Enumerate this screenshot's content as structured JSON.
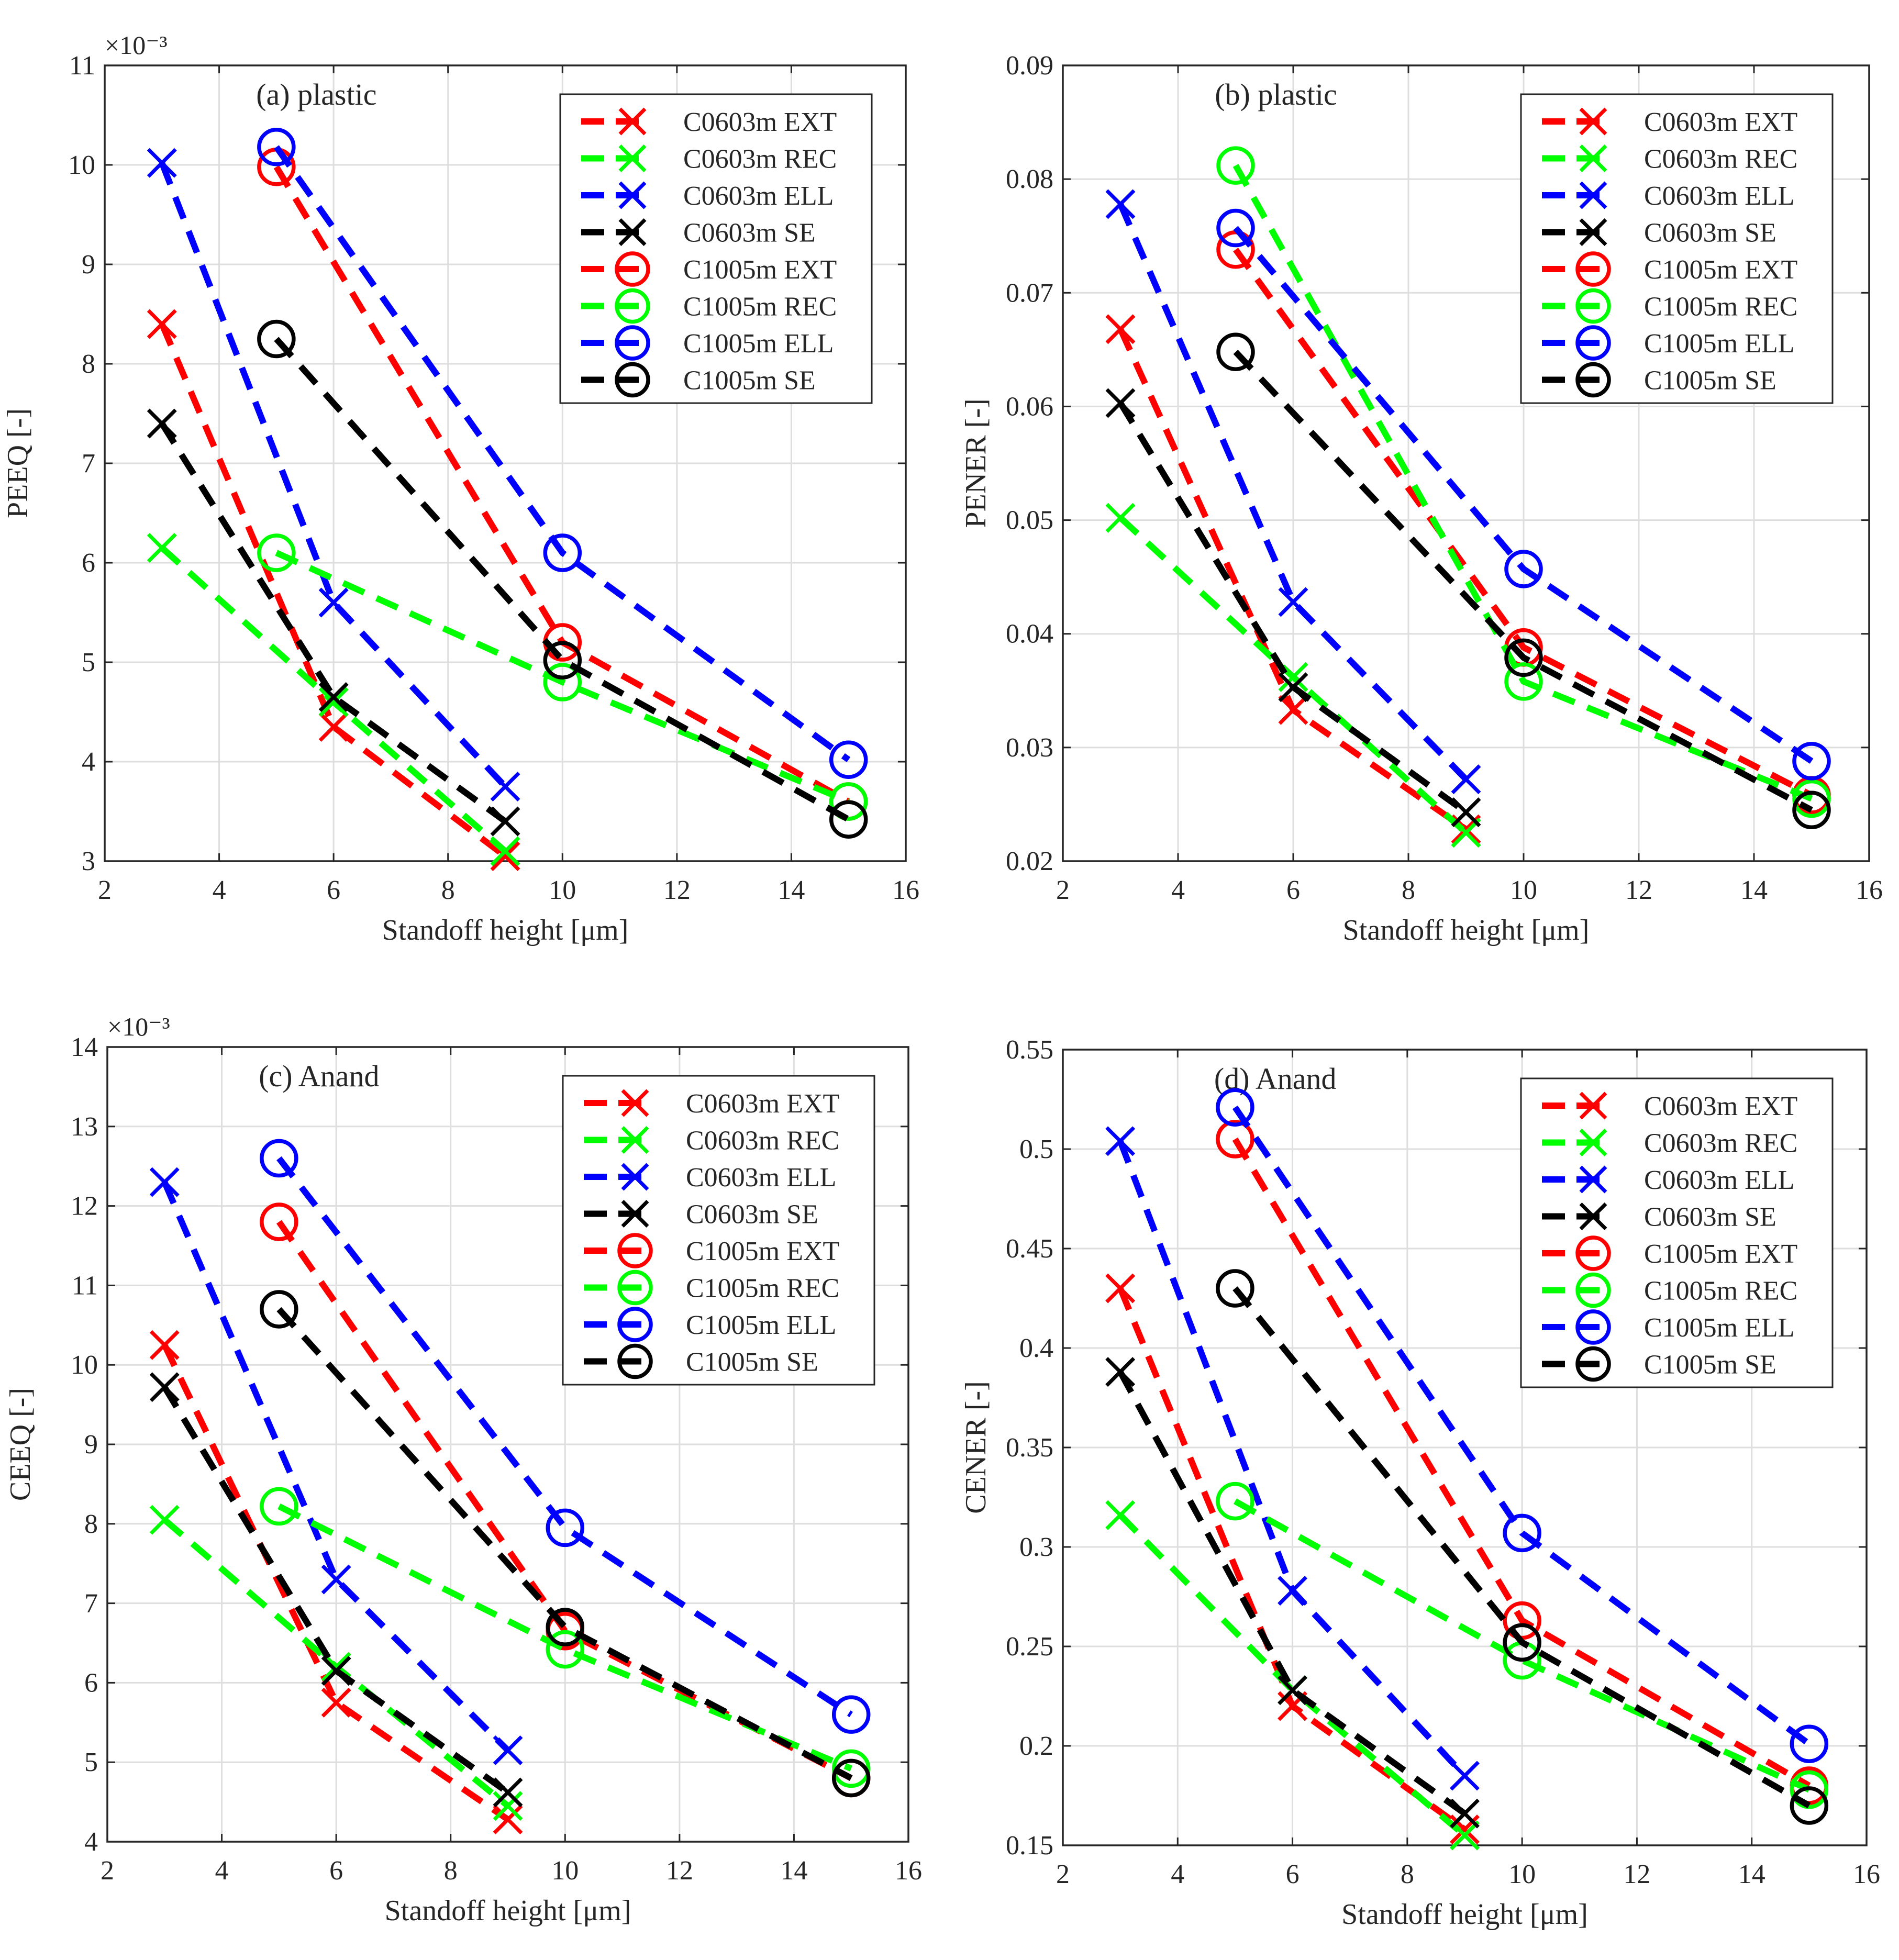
{
  "chart_data": [
    {
      "type": "line",
      "title": "(a) plastic",
      "xlabel": "Standoff height [μm]",
      "ylabel": "PEEQ [-]",
      "y_exponent": "×10⁻³",
      "xlim": [
        2,
        16
      ],
      "ylim": [
        3,
        11
      ],
      "xticks": [
        2,
        4,
        6,
        8,
        10,
        12,
        14,
        16
      ],
      "yticks": [
        3,
        4,
        5,
        6,
        7,
        8,
        9,
        10,
        11
      ],
      "ytick_labels": [
        "3",
        "4",
        "5",
        "6",
        "7",
        "8",
        "9",
        "10",
        "11"
      ],
      "grid": true,
      "legend_position": "top-right",
      "series": [
        {
          "name": "C0603m EXT",
          "color": "#ff0000",
          "marker": "x",
          "x": [
            3,
            6,
            9
          ],
          "y": [
            8.4,
            4.35,
            3.05
          ]
        },
        {
          "name": "C0603m REC",
          "color": "#00ff00",
          "marker": "x",
          "x": [
            3,
            6,
            9
          ],
          "y": [
            6.15,
            4.6,
            3.1
          ]
        },
        {
          "name": "C0603m ELL",
          "color": "#0000ff",
          "marker": "x",
          "x": [
            3,
            6,
            9
          ],
          "y": [
            10.02,
            5.6,
            3.75
          ]
        },
        {
          "name": "C0603m SE",
          "color": "#000000",
          "marker": "x",
          "x": [
            3,
            6,
            9
          ],
          "y": [
            7.4,
            4.65,
            3.4
          ]
        },
        {
          "name": "C1005m EXT",
          "color": "#ff0000",
          "marker": "o",
          "x": [
            5,
            10,
            15
          ],
          "y": [
            9.98,
            5.2,
            3.6
          ]
        },
        {
          "name": "C1005m REC",
          "color": "#00ff00",
          "marker": "o",
          "x": [
            5,
            10,
            15
          ],
          "y": [
            6.1,
            4.8,
            3.6
          ]
        },
        {
          "name": "C1005m ELL",
          "color": "#0000ff",
          "marker": "o",
          "x": [
            5,
            10,
            15
          ],
          "y": [
            10.18,
            6.1,
            4.02
          ]
        },
        {
          "name": "C1005m SE",
          "color": "#000000",
          "marker": "o",
          "x": [
            5,
            10,
            15
          ],
          "y": [
            8.25,
            5.02,
            3.42
          ]
        }
      ]
    },
    {
      "type": "line",
      "title": "(b) plastic",
      "xlabel": "Standoff height [μm]",
      "ylabel": "PENER [-]",
      "y_exponent": "",
      "xlim": [
        2,
        16
      ],
      "ylim": [
        0.02,
        0.09
      ],
      "xticks": [
        2,
        4,
        6,
        8,
        10,
        12,
        14,
        16
      ],
      "yticks": [
        0.02,
        0.03,
        0.04,
        0.05,
        0.06,
        0.07,
        0.08,
        0.09
      ],
      "ytick_labels": [
        "0.02",
        "0.03",
        "0.04",
        "0.05",
        "0.06",
        "0.07",
        "0.08",
        "0.09"
      ],
      "grid": true,
      "legend_position": "top-right",
      "series": [
        {
          "name": "C0603m EXT",
          "color": "#ff0000",
          "marker": "x",
          "x": [
            3,
            6,
            9
          ],
          "y": [
            0.0668,
            0.0333,
            0.0228
          ]
        },
        {
          "name": "C0603m REC",
          "color": "#00ff00",
          "marker": "x",
          "x": [
            3,
            6,
            9
          ],
          "y": [
            0.0502,
            0.0362,
            0.0225
          ]
        },
        {
          "name": "C0603m ELL",
          "color": "#0000ff",
          "marker": "x",
          "x": [
            3,
            6,
            9
          ],
          "y": [
            0.0778,
            0.0428,
            0.0272
          ]
        },
        {
          "name": "C0603m SE",
          "color": "#000000",
          "marker": "x",
          "x": [
            3,
            6,
            9
          ],
          "y": [
            0.0603,
            0.0353,
            0.0243
          ]
        },
        {
          "name": "C1005m EXT",
          "color": "#ff0000",
          "marker": "o",
          "x": [
            5,
            10,
            15
          ],
          "y": [
            0.0738,
            0.0388,
            0.0258
          ]
        },
        {
          "name": "C1005m REC",
          "color": "#00ff00",
          "marker": "o",
          "x": [
            5,
            10,
            15
          ],
          "y": [
            0.0812,
            0.0358,
            0.0255
          ]
        },
        {
          "name": "C1005m ELL",
          "color": "#0000ff",
          "marker": "o",
          "x": [
            5,
            10,
            15
          ],
          "y": [
            0.0757,
            0.0457,
            0.0288
          ]
        },
        {
          "name": "C1005m SE",
          "color": "#000000",
          "marker": "o",
          "x": [
            5,
            10,
            15
          ],
          "y": [
            0.0648,
            0.0379,
            0.0245
          ]
        }
      ]
    },
    {
      "type": "line",
      "title": "(c) Anand",
      "xlabel": "Standoff height [μm]",
      "ylabel": "CEEQ [-]",
      "y_exponent": "×10⁻³",
      "xlim": [
        2,
        16
      ],
      "ylim": [
        4,
        14
      ],
      "xticks": [
        2,
        4,
        6,
        8,
        10,
        12,
        14,
        16
      ],
      "yticks": [
        4,
        5,
        6,
        7,
        8,
        9,
        10,
        11,
        12,
        13,
        14
      ],
      "ytick_labels": [
        "4",
        "5",
        "6",
        "7",
        "8",
        "9",
        "10",
        "11",
        "12",
        "13",
        "14"
      ],
      "grid": true,
      "legend_position": "top-right",
      "series": [
        {
          "name": "C0603m EXT",
          "color": "#ff0000",
          "marker": "x",
          "x": [
            3,
            6,
            9
          ],
          "y": [
            10.25,
            5.75,
            4.28
          ]
        },
        {
          "name": "C0603m REC",
          "color": "#00ff00",
          "marker": "x",
          "x": [
            3,
            6,
            9
          ],
          "y": [
            8.05,
            6.2,
            4.45
          ]
        },
        {
          "name": "C0603m ELL",
          "color": "#0000ff",
          "marker": "x",
          "x": [
            3,
            6,
            9
          ],
          "y": [
            12.3,
            7.3,
            5.15
          ]
        },
        {
          "name": "C0603m SE",
          "color": "#000000",
          "marker": "x",
          "x": [
            3,
            6,
            9
          ],
          "y": [
            9.72,
            6.15,
            4.62
          ]
        },
        {
          "name": "C1005m EXT",
          "color": "#ff0000",
          "marker": "o",
          "x": [
            5,
            10,
            15
          ],
          "y": [
            11.8,
            6.65,
            4.8
          ]
        },
        {
          "name": "C1005m REC",
          "color": "#00ff00",
          "marker": "o",
          "x": [
            5,
            10,
            15
          ],
          "y": [
            8.22,
            6.42,
            4.92
          ]
        },
        {
          "name": "C1005m ELL",
          "color": "#0000ff",
          "marker": "o",
          "x": [
            5,
            10,
            15
          ],
          "y": [
            12.6,
            7.95,
            5.6
          ]
        },
        {
          "name": "C1005m SE",
          "color": "#000000",
          "marker": "o",
          "x": [
            5,
            10,
            15
          ],
          "y": [
            10.7,
            6.7,
            4.8
          ]
        }
      ]
    },
    {
      "type": "line",
      "title": "(d) Anand",
      "xlabel": "Standoff height [μm]",
      "ylabel": "CENER [-]",
      "y_exponent": "",
      "xlim": [
        2,
        16
      ],
      "ylim": [
        0.15,
        0.55
      ],
      "xticks": [
        2,
        4,
        6,
        8,
        10,
        12,
        14,
        16
      ],
      "yticks": [
        0.15,
        0.2,
        0.25,
        0.3,
        0.35,
        0.4,
        0.45,
        0.5,
        0.55
      ],
      "ytick_labels": [
        "0.15",
        "0.2",
        "0.25",
        "0.3",
        "0.35",
        "0.4",
        "0.45",
        "0.5",
        "0.55"
      ],
      "grid": true,
      "legend_position": "top-right",
      "series": [
        {
          "name": "C0603m EXT",
          "color": "#ff0000",
          "marker": "x",
          "x": [
            3,
            6,
            9
          ],
          "y": [
            0.43,
            0.22,
            0.158
          ]
        },
        {
          "name": "C0603m REC",
          "color": "#00ff00",
          "marker": "x",
          "x": [
            3,
            6,
            9
          ],
          "y": [
            0.316,
            0.228,
            0.155
          ]
        },
        {
          "name": "C0603m ELL",
          "color": "#0000ff",
          "marker": "x",
          "x": [
            3,
            6,
            9
          ],
          "y": [
            0.504,
            0.278,
            0.185
          ]
        },
        {
          "name": "C0603m SE",
          "color": "#000000",
          "marker": "x",
          "x": [
            3,
            6,
            9
          ],
          "y": [
            0.388,
            0.228,
            0.166
          ]
        },
        {
          "name": "C1005m EXT",
          "color": "#ff0000",
          "marker": "o",
          "x": [
            5,
            10,
            15
          ],
          "y": [
            0.505,
            0.263,
            0.18
          ]
        },
        {
          "name": "C1005m REC",
          "color": "#00ff00",
          "marker": "o",
          "x": [
            5,
            10,
            15
          ],
          "y": [
            0.323,
            0.243,
            0.178
          ]
        },
        {
          "name": "C1005m ELL",
          "color": "#0000ff",
          "marker": "o",
          "x": [
            5,
            10,
            15
          ],
          "y": [
            0.521,
            0.307,
            0.201
          ]
        },
        {
          "name": "C1005m SE",
          "color": "#000000",
          "marker": "o",
          "x": [
            5,
            10,
            15
          ],
          "y": [
            0.43,
            0.252,
            0.17
          ]
        }
      ]
    }
  ]
}
